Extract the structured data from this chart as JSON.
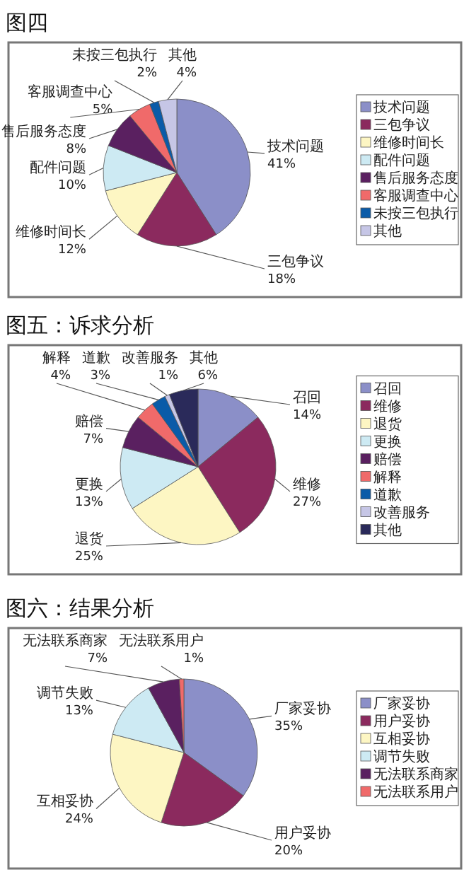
{
  "chart_data": [
    {
      "type": "pie",
      "title": "图四",
      "legend": "right",
      "categories": [
        "技术问题",
        "三包争议",
        "维修时间长",
        "配件问题",
        "售后服务态度",
        "客服调查中心",
        "未按三包执行",
        "其他"
      ],
      "values": [
        41,
        18,
        12,
        10,
        8,
        5,
        2,
        4
      ],
      "value_labels": [
        "41%",
        "18%",
        "12%",
        "10%",
        "8%",
        "5%",
        "2%",
        "4%"
      ],
      "colors": [
        "#8b8fc8",
        "#8b2a5e",
        "#fdf6c3",
        "#cdeaf3",
        "#5a2060",
        "#f06a6a",
        "#0a5ba8",
        "#c6c6e6"
      ]
    },
    {
      "type": "pie",
      "title": "图五：诉求分析",
      "legend": "right",
      "categories": [
        "召回",
        "维修",
        "退货",
        "更换",
        "赔偿",
        "解释",
        "道歉",
        "改善服务",
        "其他"
      ],
      "values": [
        14,
        27,
        25,
        13,
        7,
        4,
        3,
        1,
        6
      ],
      "value_labels": [
        "14%",
        "27%",
        "25%",
        "13%",
        "7%",
        "4%",
        "3%",
        "1%",
        "6%"
      ],
      "colors": [
        "#8b8fc8",
        "#8b2a5e",
        "#fdf6c3",
        "#cdeaf3",
        "#5a2060",
        "#f06a6a",
        "#0a5ba8",
        "#c6c6e6",
        "#2a2a5a"
      ]
    },
    {
      "type": "pie",
      "title": "图六：结果分析",
      "legend": "right",
      "categories": [
        "厂家妥协",
        "用户妥协",
        "互相妥协",
        "调节失败",
        "无法联系商家",
        "无法联系用户"
      ],
      "values": [
        35,
        20,
        24,
        13,
        7,
        1
      ],
      "value_labels": [
        "35%",
        "20%",
        "24%",
        "13%",
        "7%",
        "1%"
      ],
      "colors": [
        "#8b8fc8",
        "#8b2a5e",
        "#fdf6c3",
        "#cdeaf3",
        "#5a2060",
        "#f06a6a"
      ]
    }
  ]
}
